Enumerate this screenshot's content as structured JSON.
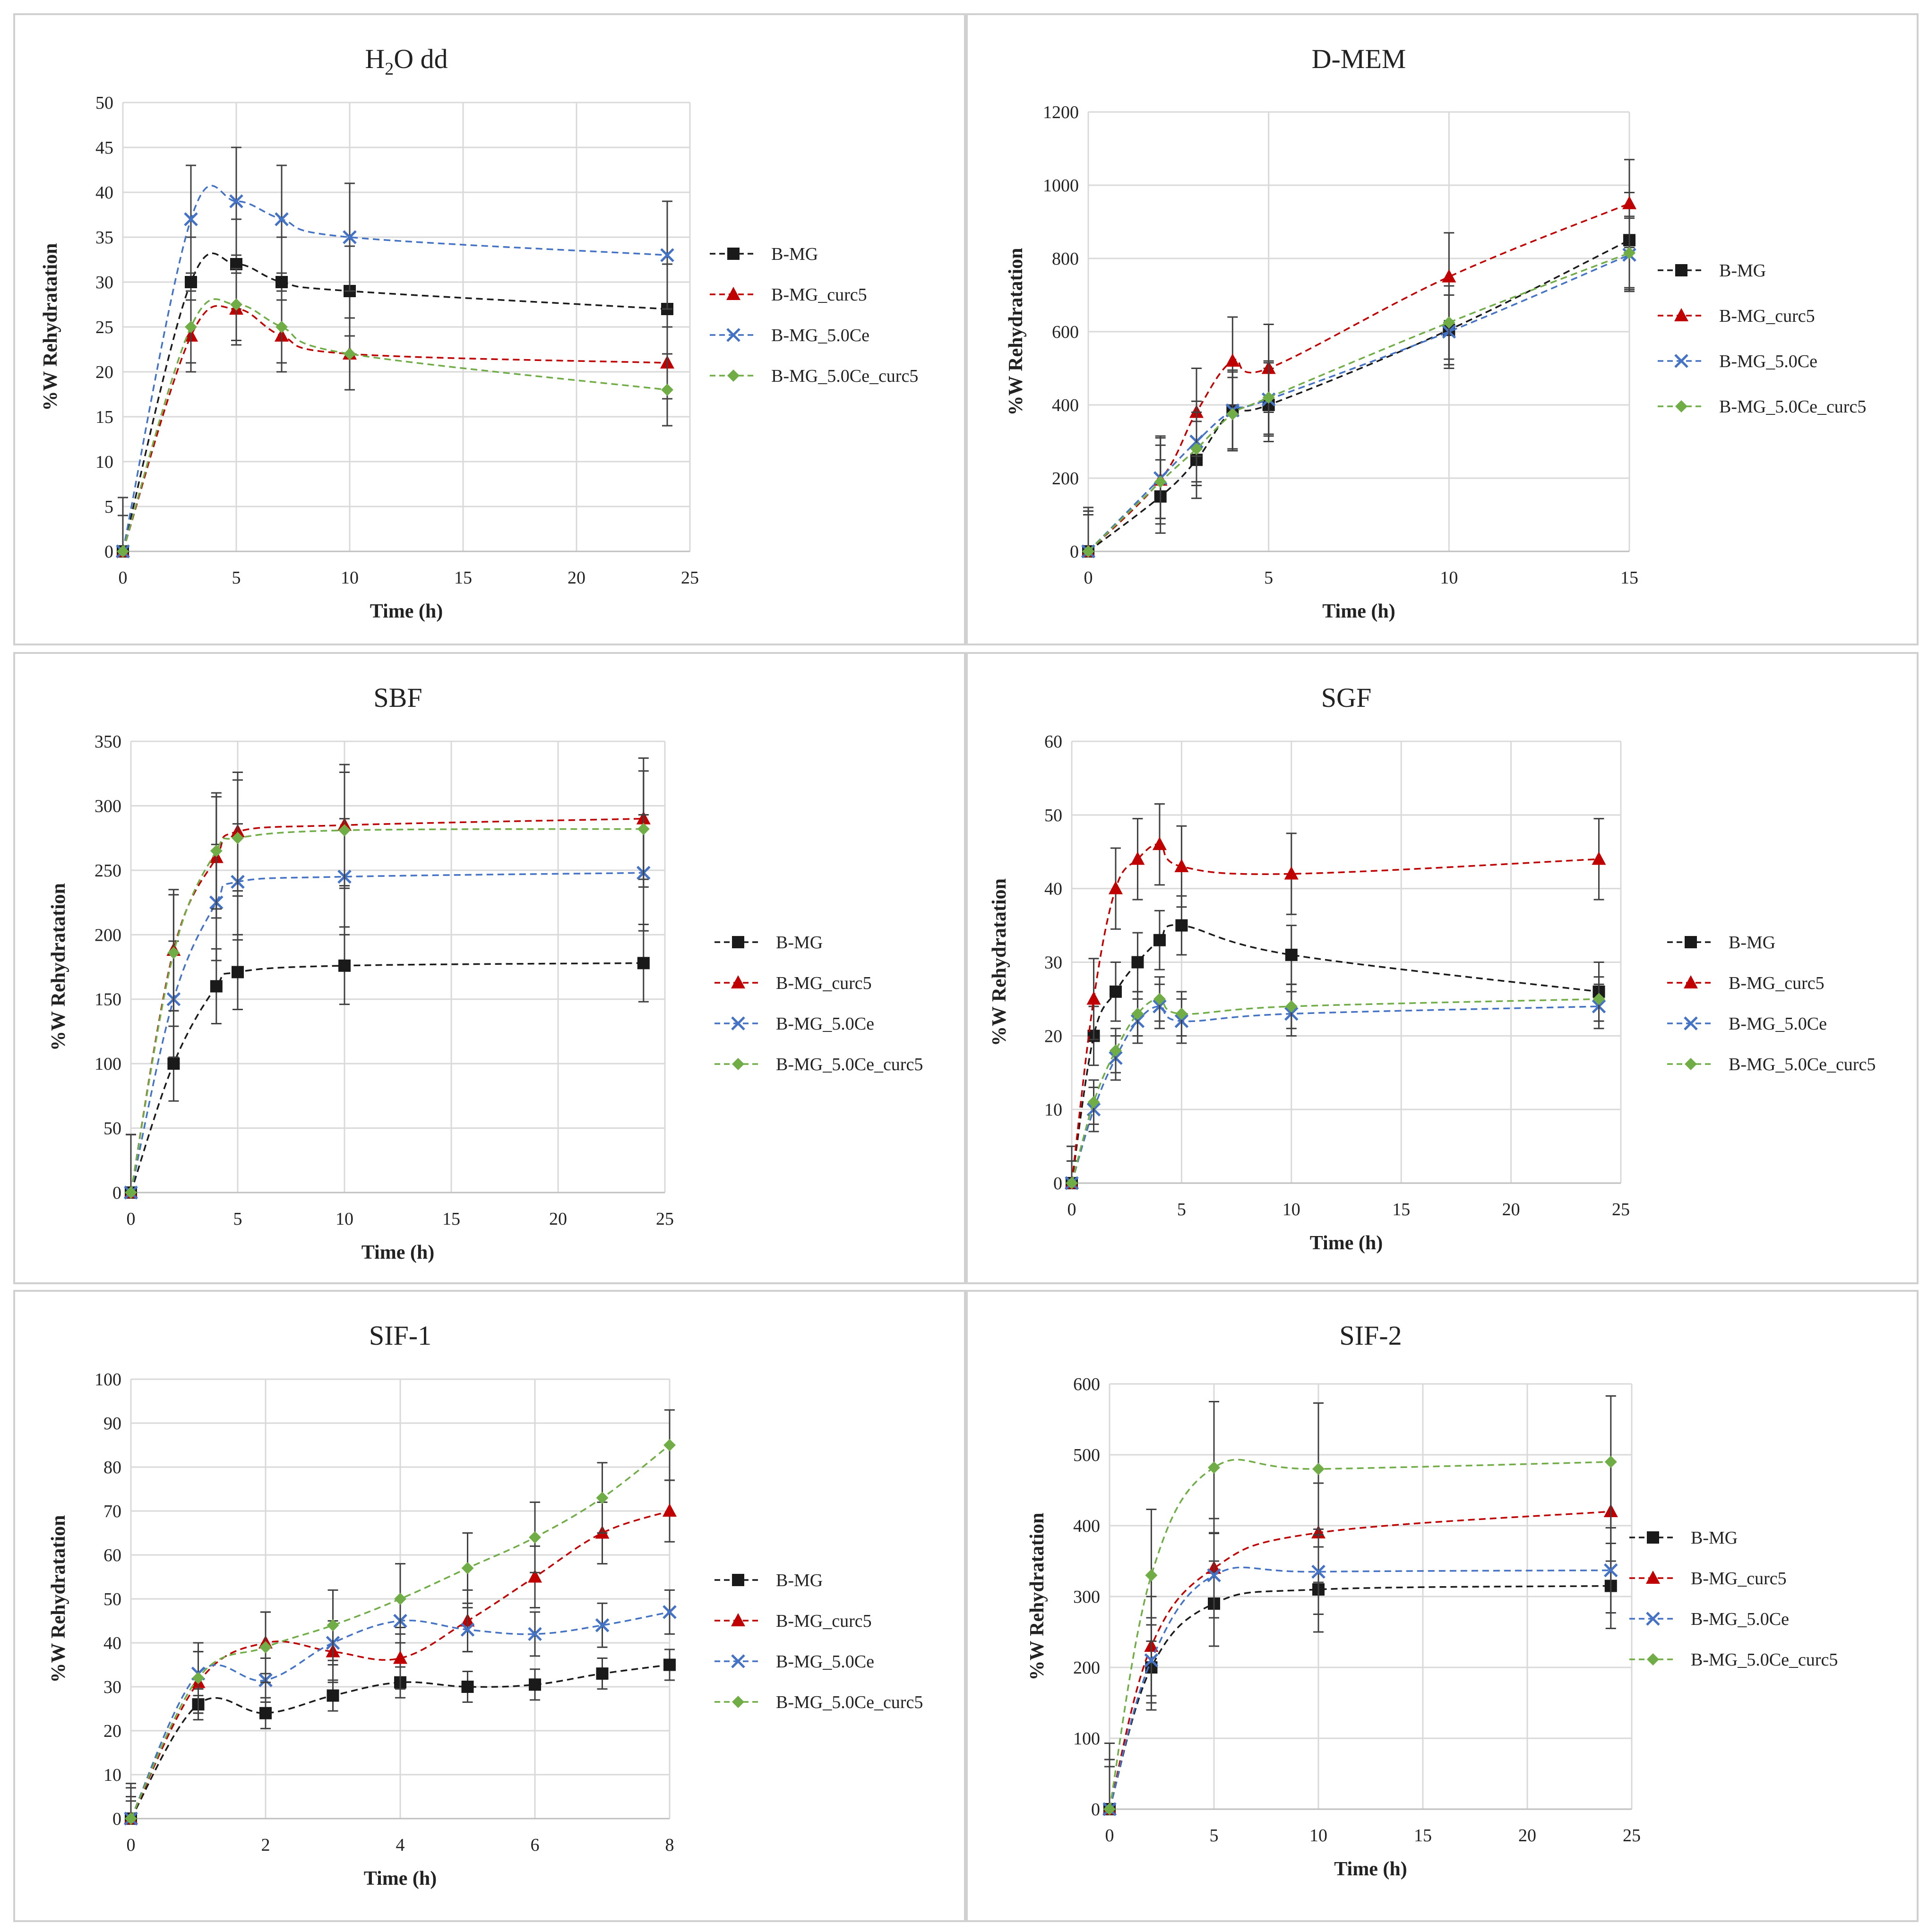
{
  "figure": {
    "series_names": [
      "B-MG",
      "B-MG_curc5",
      "B-MG_5.0Ce",
      "B-MG_5.0Ce_curc5"
    ]
  },
  "series_style": [
    {
      "name": "B-MG",
      "color": "#1a1a1a",
      "marker": "square"
    },
    {
      "name": "B-MG_curc5",
      "color": "#c00000",
      "marker": "triangle"
    },
    {
      "name": "B-MG_5.0Ce",
      "color": "#4472c4",
      "marker": "x"
    },
    {
      "name": "B-MG_5.0Ce_curc5",
      "color": "#70ad47",
      "marker": "diamond"
    }
  ],
  "chart_data": [
    {
      "type": "line",
      "title": "H2O dd",
      "title_main": "H",
      "title_sub": "2",
      "title_rest": "O dd",
      "xlabel": "Time (h)",
      "ylabel": "%W Rehydratation",
      "xlim": [
        0,
        25
      ],
      "ylim": [
        0,
        50
      ],
      "xticks": [
        0,
        5,
        10,
        15,
        20,
        25
      ],
      "yticks": [
        0,
        5,
        10,
        15,
        20,
        25,
        30,
        35,
        40,
        45,
        50
      ],
      "grid": true,
      "legend": "right",
      "x": [
        0,
        3,
        5,
        7,
        10,
        24
      ],
      "series": [
        {
          "name": "B-MG",
          "values": [
            0,
            30,
            32,
            30,
            29,
            27
          ],
          "err": [
            6,
            5,
            5,
            5,
            5,
            5
          ]
        },
        {
          "name": "B-MG_curc5",
          "values": [
            0,
            24,
            27,
            24,
            22,
            21
          ],
          "err": [
            4,
            4,
            4,
            4,
            4,
            4
          ]
        },
        {
          "name": "B-MG_5.0Ce",
          "values": [
            0,
            37,
            39,
            37,
            35,
            33
          ],
          "err": [
            6,
            6,
            6,
            6,
            6,
            6
          ]
        },
        {
          "name": "B-MG_5.0Ce_curc5",
          "values": [
            0,
            25,
            27.5,
            25,
            22,
            18
          ],
          "err": [
            4,
            4,
            4,
            4,
            4,
            4
          ]
        }
      ]
    },
    {
      "type": "line",
      "title": "D-MEM",
      "xlabel": "Time (h)",
      "ylabel": "%W Rehydratation",
      "xlim": [
        0,
        15
      ],
      "ylim": [
        0,
        1200
      ],
      "xticks": [
        0,
        5,
        10,
        15
      ],
      "yticks": [
        0,
        200,
        400,
        600,
        800,
        1000,
        1200
      ],
      "grid": true,
      "legend": "right",
      "x": [
        0,
        2,
        3,
        4,
        5,
        10,
        15
      ],
      "series": [
        {
          "name": "B-MG",
          "values": [
            0,
            150,
            250,
            385,
            400,
            605,
            850
          ],
          "err": [
            110,
            100,
            105,
            105,
            100,
            95,
            130
          ]
        },
        {
          "name": "B-MG_curc5",
          "values": [
            0,
            195,
            380,
            520,
            500,
            750,
            950
          ],
          "err": [
            120,
            120,
            120,
            120,
            120,
            120,
            120
          ]
        },
        {
          "name": "B-MG_5.0Ce",
          "values": [
            0,
            200,
            300,
            385,
            415,
            600,
            810
          ],
          "err": [
            110,
            110,
            110,
            110,
            100,
            100,
            100
          ]
        },
        {
          "name": "B-MG_5.0Ce_curc5",
          "values": [
            0,
            190,
            280,
            375,
            420,
            625,
            815
          ],
          "err": [
            100,
            100,
            100,
            100,
            100,
            100,
            100
          ]
        }
      ]
    },
    {
      "type": "line",
      "title": "SBF",
      "xlabel": "Time (h)",
      "ylabel": "%W Rehydratation",
      "xlim": [
        0,
        25
      ],
      "ylim": [
        0,
        350
      ],
      "xticks": [
        0,
        5,
        10,
        15,
        20,
        25
      ],
      "yticks": [
        0,
        50,
        100,
        150,
        200,
        250,
        300,
        350
      ],
      "grid": true,
      "legend": "right",
      "x": [
        0,
        2,
        4,
        5,
        10,
        24
      ],
      "series": [
        {
          "name": "B-MG",
          "values": [
            0,
            100,
            160,
            171,
            176,
            178
          ],
          "err": [
            45,
            29,
            29,
            29,
            30,
            30
          ]
        },
        {
          "name": "B-MG_curc5",
          "values": [
            0,
            188,
            260,
            280,
            285,
            290
          ],
          "err": [
            45,
            47,
            47,
            46,
            47,
            47
          ]
        },
        {
          "name": "B-MG_5.0Ce",
          "values": [
            0,
            150,
            225,
            241,
            245,
            248
          ],
          "err": [
            45,
            45,
            45,
            45,
            45,
            45
          ]
        },
        {
          "name": "B-MG_5.0Ce_curc5",
          "values": [
            0,
            186,
            265,
            275,
            281,
            282
          ],
          "err": [
            45,
            45,
            45,
            45,
            45,
            45
          ]
        }
      ]
    },
    {
      "type": "line",
      "title": "SGF",
      "xlabel": "Time (h)",
      "ylabel": "%W Rehydratation",
      "xlim": [
        0,
        25
      ],
      "ylim": [
        0,
        60
      ],
      "xticks": [
        0,
        5,
        10,
        15,
        20,
        25
      ],
      "yticks": [
        0,
        10,
        20,
        30,
        40,
        50,
        60
      ],
      "grid": true,
      "legend": "right",
      "x": [
        0,
        1,
        2,
        3,
        4,
        5,
        10,
        24
      ],
      "series": [
        {
          "name": "B-MG",
          "values": [
            0,
            20,
            26,
            30,
            33,
            35,
            31,
            26
          ],
          "err": [
            5,
            4,
            4,
            4,
            4,
            4,
            4,
            4
          ]
        },
        {
          "name": "B-MG_curc5",
          "values": [
            0,
            25,
            40,
            44,
            46,
            43,
            42,
            44
          ],
          "err": [
            5,
            5.5,
            5.5,
            5.5,
            5.5,
            5.5,
            5.5,
            5.5
          ]
        },
        {
          "name": "B-MG_5.0Ce",
          "values": [
            0,
            10,
            17,
            22,
            24,
            22,
            23,
            24
          ],
          "err": [
            3,
            3,
            3,
            3,
            3,
            3,
            3,
            3
          ]
        },
        {
          "name": "B-MG_5.0Ce_curc5",
          "values": [
            0,
            11,
            18,
            23,
            25,
            23,
            24,
            25
          ],
          "err": [
            3,
            3,
            3,
            3,
            3,
            3,
            3,
            3
          ]
        }
      ]
    },
    {
      "type": "line",
      "title": "SIF-1",
      "xlabel": "Time (h)",
      "ylabel": "%W Rehydratation",
      "xlim": [
        0,
        8
      ],
      "ylim": [
        0,
        100
      ],
      "xticks": [
        0,
        2,
        4,
        6,
        8
      ],
      "yticks": [
        0,
        10,
        20,
        30,
        40,
        50,
        60,
        70,
        80,
        90,
        100
      ],
      "grid": true,
      "legend": "right",
      "x": [
        0,
        1,
        2,
        3,
        4,
        5,
        6,
        7,
        8
      ],
      "series": [
        {
          "name": "B-MG",
          "values": [
            0,
            26,
            24,
            28,
            31,
            30,
            30.5,
            33,
            35
          ],
          "err": [
            4,
            3.5,
            3.5,
            3.5,
            3.5,
            3.5,
            3.5,
            3.5,
            3.5
          ]
        },
        {
          "name": "B-MG_curc5",
          "values": [
            0,
            31,
            40,
            38,
            36.5,
            45,
            55,
            65,
            70
          ],
          "err": [
            7,
            7,
            7,
            7,
            7,
            7,
            7,
            7,
            7
          ]
        },
        {
          "name": "B-MG_5.0Ce",
          "values": [
            0,
            33,
            31.5,
            40,
            45,
            43,
            42,
            44,
            47
          ],
          "err": [
            5,
            5,
            5,
            5,
            5,
            5,
            5,
            5,
            5
          ]
        },
        {
          "name": "B-MG_5.0Ce_curc5",
          "values": [
            0,
            32,
            39,
            44,
            50,
            57,
            64,
            73,
            85
          ],
          "err": [
            8,
            8,
            8,
            8,
            8,
            8,
            8,
            8,
            8
          ]
        }
      ]
    },
    {
      "type": "line",
      "title": "SIF-2",
      "xlabel": "Time (h)",
      "ylabel": "%W Rehydratation",
      "xlim": [
        0,
        25
      ],
      "ylim": [
        0,
        600
      ],
      "xticks": [
        0,
        5,
        10,
        15,
        20,
        25
      ],
      "yticks": [
        0,
        100,
        200,
        300,
        400,
        500,
        600
      ],
      "grid": true,
      "legend": "right",
      "x": [
        0,
        2,
        5,
        10,
        24
      ],
      "series": [
        {
          "name": "B-MG",
          "values": [
            0,
            200,
            290,
            310,
            315
          ],
          "err": [
            60,
            60,
            60,
            60,
            60
          ]
        },
        {
          "name": "B-MG_curc5",
          "values": [
            0,
            230,
            340,
            390,
            420
          ],
          "err": [
            70,
            70,
            70,
            70,
            70
          ]
        },
        {
          "name": "B-MG_5.0Ce",
          "values": [
            0,
            210,
            330,
            335,
            337
          ],
          "err": [
            60,
            60,
            60,
            60,
            60
          ]
        },
        {
          "name": "B-MG_5.0Ce_curc5",
          "values": [
            0,
            330,
            482,
            480,
            490
          ],
          "err": [
            93,
            93,
            93,
            93,
            93
          ]
        }
      ]
    }
  ]
}
